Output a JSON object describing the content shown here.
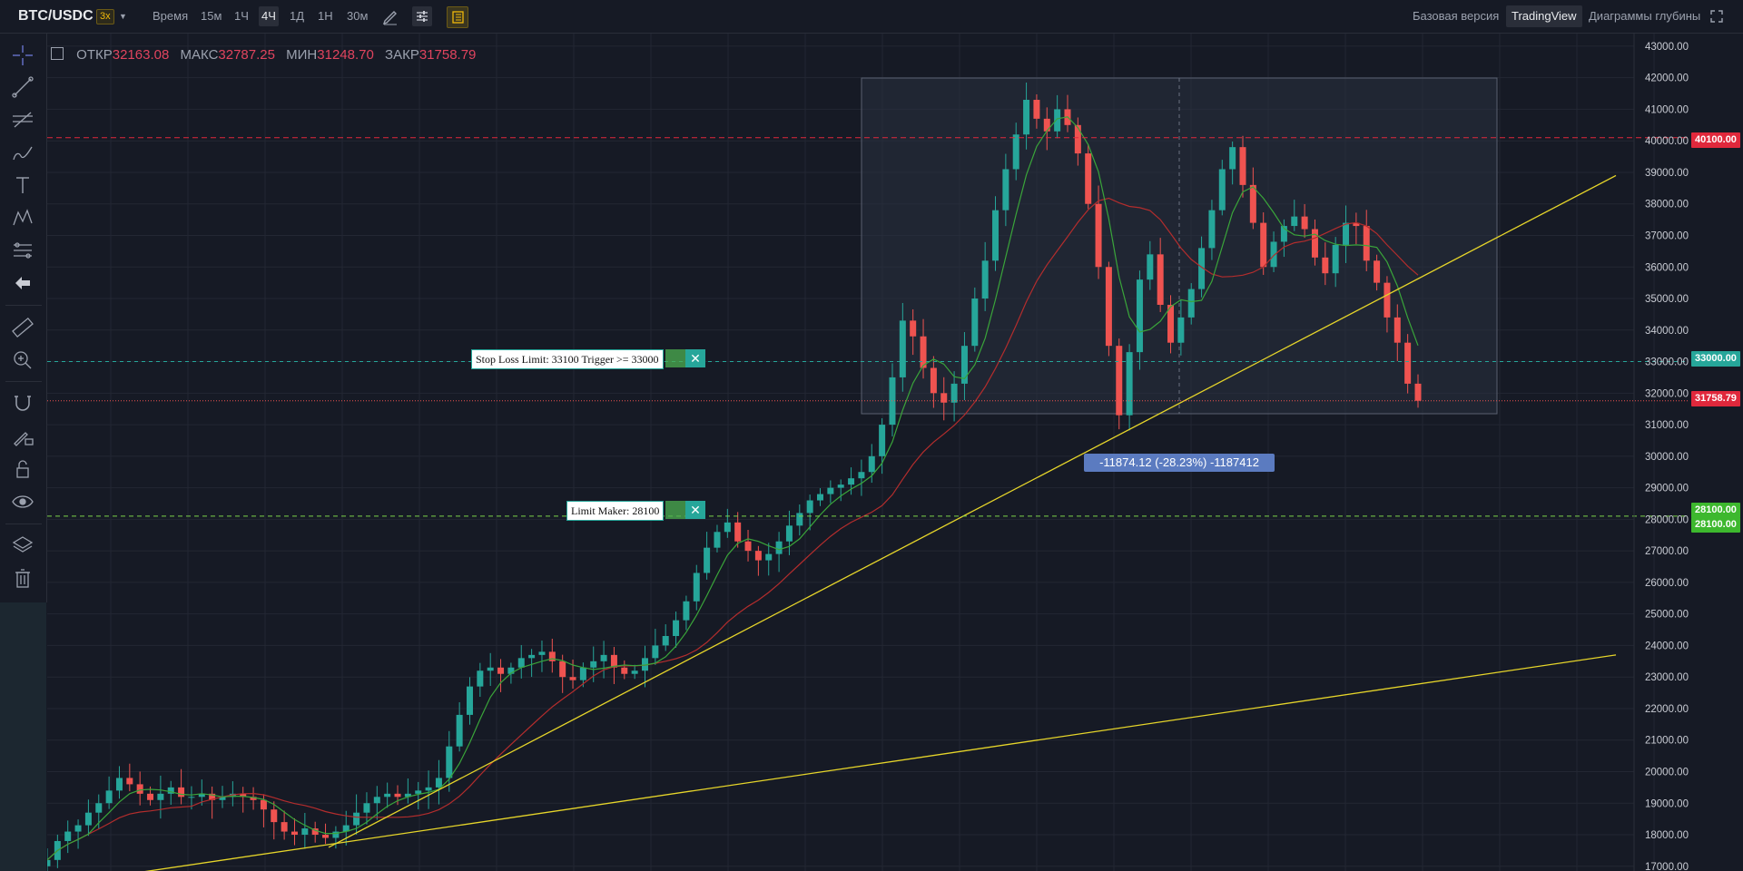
{
  "toolbar": {
    "pair": "BTC/USDC",
    "leverage": "3x",
    "caret": "▼",
    "time_label": "Время",
    "intervals": [
      "15м",
      "1Ч",
      "4Ч",
      "1Д",
      "1Н",
      "30м"
    ],
    "active_interval": "4Ч",
    "views": [
      "Базовая версия",
      "TradingView",
      "Диаграммы глубины"
    ],
    "active_view": "TradingView"
  },
  "ohlc": {
    "open_label": "ОТКР",
    "open": "32163.08",
    "high_label": "МАКС",
    "high": "32787.25",
    "low_label": "МИН",
    "low": "31248.70",
    "close_label": "ЗАКР",
    "close": "31758.79"
  },
  "orders": {
    "stop_loss": "Stop Loss Limit: 33100 Trigger >= 33000",
    "limit_maker": "Limit Maker: 28100",
    "close_symbol": "✕"
  },
  "measure": "-11874.12 (-28.23%) -1187412",
  "price_tags": {
    "red_line": "40100.00",
    "stop_line": "33000.00",
    "last_price": "31758.79",
    "limit_line": "28100.00",
    "limit_line_2": "28100.00"
  },
  "colors": {
    "up": "#26a69a",
    "down": "#ef5350",
    "trendline": "#e6d52a",
    "ma_fast": "#3aa53a",
    "ma_slow": "#b32d2d",
    "alert": "#e0283c"
  },
  "chart_data": {
    "type": "candlestick",
    "y_axis_ticks": [
      "43000.00",
      "42000.00",
      "41000.00",
      "40000.00",
      "39000.00",
      "38000.00",
      "37000.00",
      "36000.00",
      "35000.00",
      "34000.00",
      "33000.00",
      "32000.00",
      "31000.00",
      "30000.00",
      "29000.00",
      "28000.00",
      "27000.00",
      "26000.00",
      "25000.00",
      "24000.00",
      "23000.00",
      "22000.00",
      "21000.00",
      "20000.00",
      "19000.00",
      "18000.00",
      "17000.00"
    ],
    "ylim": [
      16850,
      43400
    ],
    "horizontal_lines": [
      40100,
      33000,
      31758.79,
      28100
    ],
    "last_close": 31758.79,
    "series": [
      {
        "name": "",
        "values": [
          17200,
          17800,
          18100,
          18300,
          18700,
          19000,
          19400,
          19800,
          19600,
          19300,
          19100,
          19300,
          19500,
          19200,
          19200,
          19300,
          19100,
          19200,
          19300,
          19200,
          19100,
          18800,
          18400,
          18100,
          18000,
          18200,
          18000,
          17900,
          18100,
          18300,
          18700,
          19000,
          19200,
          19300,
          19200,
          19300,
          19400,
          19500,
          19800,
          20800,
          21800,
          22700,
          23200,
          23300,
          23100,
          23300,
          23600,
          23700,
          23800,
          23500,
          23000,
          22900,
          23300,
          23500,
          23700,
          23300,
          23100,
          23200,
          23600,
          24000,
          24300,
          24800,
          25400,
          26300,
          27100,
          27600,
          27900,
          27300,
          27000,
          26700,
          26900,
          27300,
          27800,
          28200,
          28600,
          28800,
          29000,
          29100,
          29300,
          29500,
          30000,
          31000,
          32500,
          34300,
          33800,
          32800,
          32000,
          31700,
          32300,
          33500,
          35000,
          36200,
          37800,
          39100,
          40200,
          41300,
          40700,
          40300,
          41000,
          40500,
          39600,
          38000,
          36000,
          33500,
          31300,
          33300,
          35600,
          36400,
          34800,
          33600,
          34400,
          35300,
          36600,
          37800,
          39100,
          39800,
          38600,
          37400,
          36000,
          36800,
          37300,
          37600,
          37200,
          36300,
          35800,
          36700,
          37400,
          37300,
          36200,
          35500,
          34400,
          33600,
          32300,
          31758
        ]
      },
      {
        "name": "",
        "values": []
      }
    ],
    "trendlines": [
      {
        "from_price": 17600,
        "to_price": 38900
      },
      {
        "from_price": 16800,
        "to_price": 23700
      }
    ],
    "measure_range": {
      "high": 42000,
      "low": 30200
    }
  }
}
